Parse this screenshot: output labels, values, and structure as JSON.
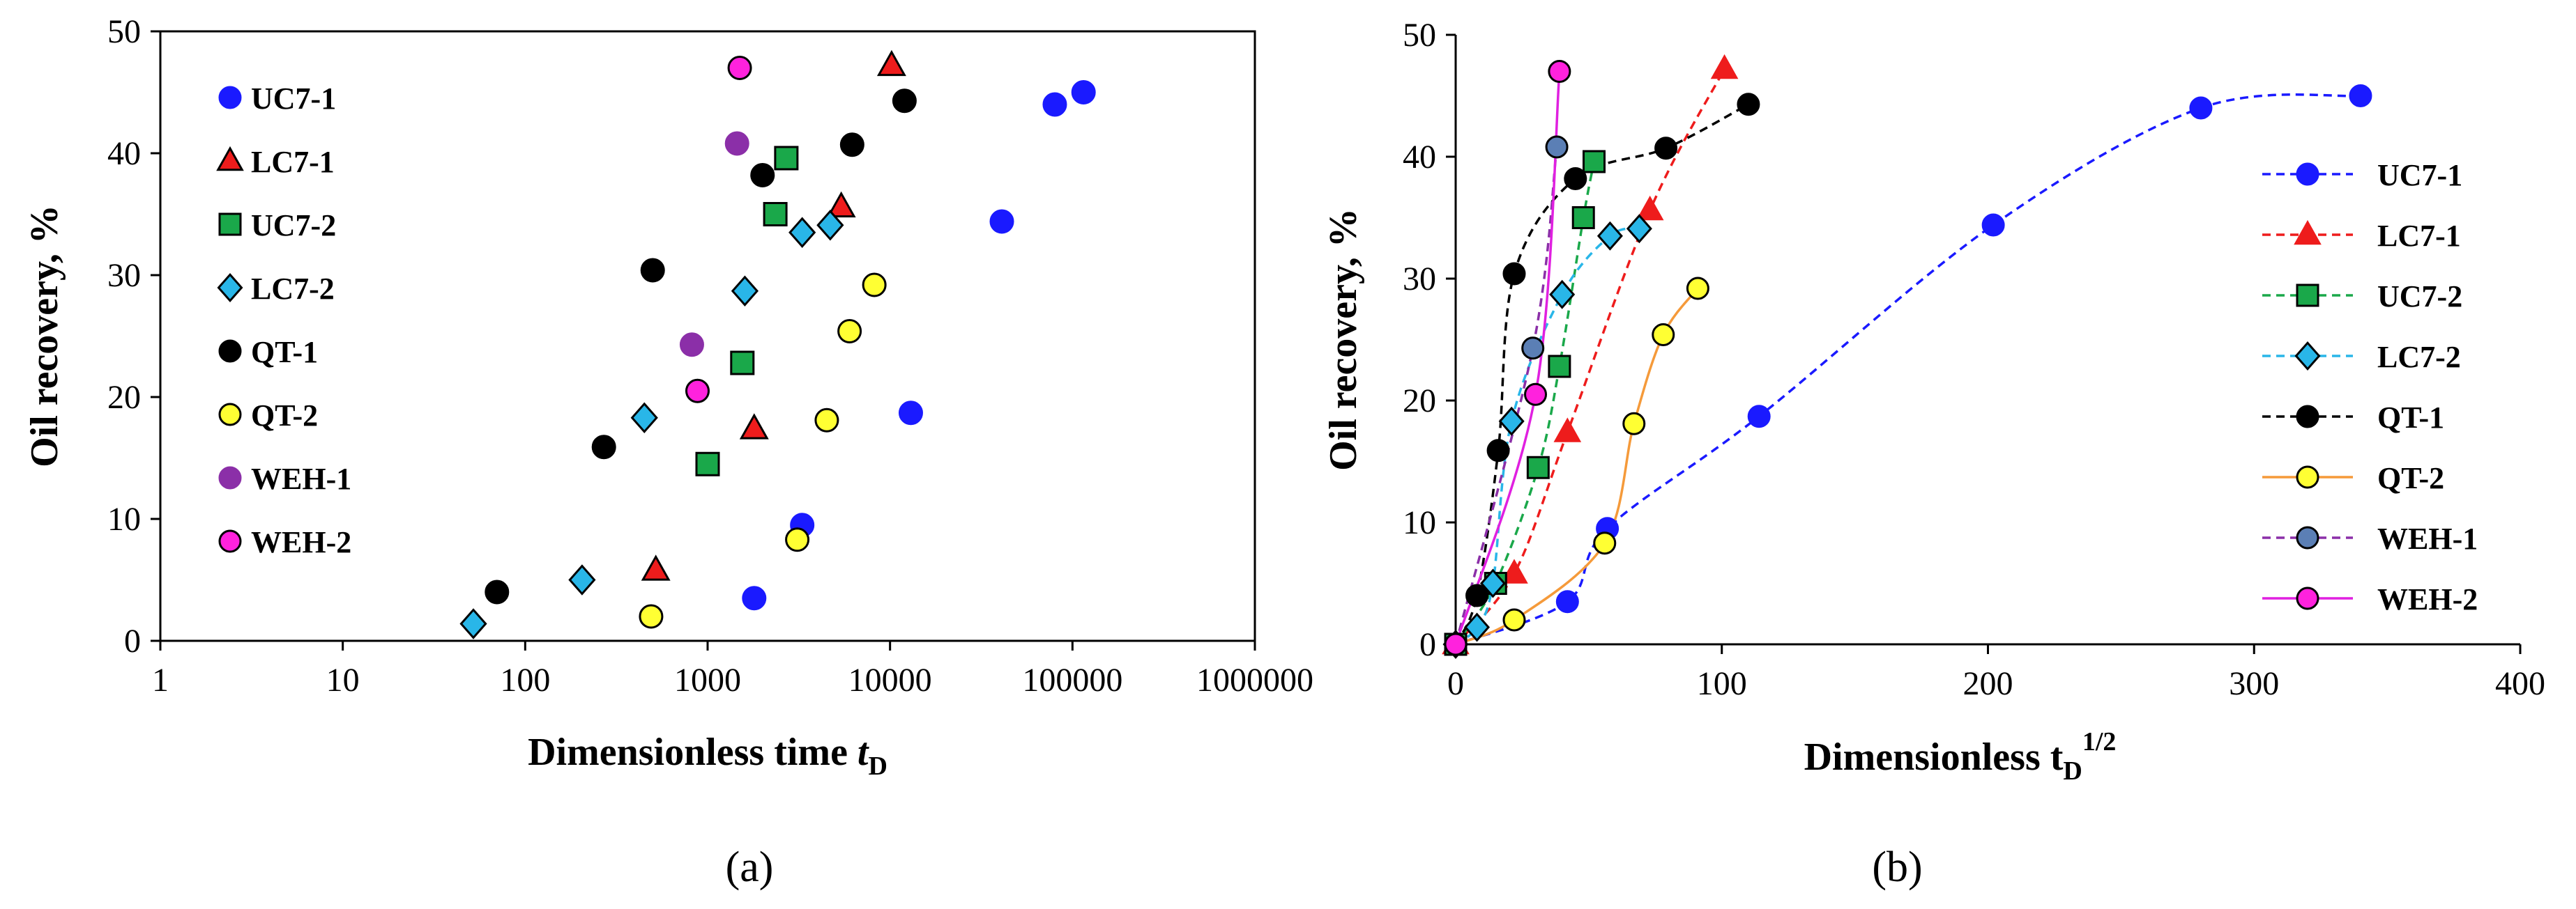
{
  "chart_data": [
    {
      "type": "scatter",
      "panel_label": "(a)",
      "xlabel": "Dimensionless time",
      "xlabel_symbol": "t",
      "xlabel_subscript": "D",
      "ylabel": "Oil recovery, %",
      "xscale": "log",
      "xlim": [
        1,
        1000000
      ],
      "ylim": [
        0,
        50
      ],
      "xticks": [
        "1",
        "10",
        "100",
        "1000",
        "10000",
        "100000",
        "1000000"
      ],
      "yticks": [
        "0",
        "10",
        "20",
        "30",
        "40",
        "50"
      ],
      "legend_position": "left-inside",
      "series": [
        {
          "name": "UC7-1",
          "marker": "circle",
          "fill": "#1a1aff",
          "stroke": "#1a1aff",
          "points": [
            [
              1800,
              3.5
            ],
            [
              3300,
              9.5
            ],
            [
              13000,
              18.7
            ],
            [
              41000,
              34.4
            ],
            [
              80000,
              44
            ],
            [
              115000,
              45
            ]
          ]
        },
        {
          "name": "LC7-1",
          "marker": "triangle",
          "fill": "#ee1c1c",
          "stroke": "#000000",
          "points": [
            [
              520,
              5.8
            ],
            [
              1800,
              17.4
            ],
            [
              5400,
              35.6
            ],
            [
              10200,
              47.2
            ]
          ]
        },
        {
          "name": "UC7-2",
          "marker": "square",
          "fill": "#1aa84a",
          "stroke": "#000000",
          "points": [
            [
              1000,
              14.5
            ],
            [
              1550,
              22.8
            ],
            [
              2350,
              35
            ],
            [
              2700,
              39.6
            ]
          ]
        },
        {
          "name": "LC7-2",
          "marker": "diamond",
          "fill": "#29b6e8",
          "stroke": "#000000",
          "points": [
            [
              52,
              1.4
            ],
            [
              205,
              5
            ],
            [
              450,
              18.3
            ],
            [
              1600,
              28.7
            ],
            [
              3300,
              33.5
            ],
            [
              4700,
              34.1
            ]
          ]
        },
        {
          "name": "QT-1",
          "marker": "circle",
          "fill": "#000000",
          "stroke": "#000000",
          "points": [
            [
              70,
              4
            ],
            [
              270,
              15.9
            ],
            [
              500,
              30.4
            ],
            [
              2000,
              38.2
            ],
            [
              6200,
              40.7
            ],
            [
              12000,
              44.3
            ]
          ]
        },
        {
          "name": "QT-2",
          "marker": "circle",
          "fill": "#ffff33",
          "stroke": "#000000",
          "points": [
            [
              490,
              2
            ],
            [
              3100,
              8.3
            ],
            [
              4500,
              18.1
            ],
            [
              6000,
              25.4
            ],
            [
              8200,
              29.2
            ]
          ]
        },
        {
          "name": "WEH-1",
          "marker": "circle",
          "fill": "#8b2fa8",
          "stroke": "#8b2fa8",
          "points": [
            [
              820,
              24.3
            ],
            [
              1450,
              40.8
            ]
          ]
        },
        {
          "name": "WEH-2",
          "marker": "circle",
          "fill": "#ff22dd",
          "stroke": "#000000",
          "points": [
            [
              880,
              20.5
            ],
            [
              1500,
              47
            ]
          ]
        }
      ]
    },
    {
      "type": "line",
      "panel_label": "(b)",
      "xlabel": "Dimensionless t",
      "xlabel_subscript": "D",
      "xlabel_superscript": "1/2",
      "ylabel": "Oil recovery, %",
      "xlim": [
        0,
        400
      ],
      "ylim": [
        0,
        50
      ],
      "xticks": [
        "0",
        "100",
        "200",
        "300",
        "400"
      ],
      "yticks": [
        "0",
        "10",
        "20",
        "30",
        "40",
        "50"
      ],
      "legend_position": "right-inside",
      "series": [
        {
          "name": "UC7-1",
          "marker": "circle",
          "fill": "#1a1aff",
          "stroke": "#1a1aff",
          "line": "#1a1aff",
          "dash": true,
          "points": [
            [
              0,
              0
            ],
            [
              42,
              3.5
            ],
            [
              57,
              9.5
            ],
            [
              114,
              18.7
            ],
            [
              202,
              34.4
            ],
            [
              280,
              44
            ],
            [
              340,
              45
            ]
          ]
        },
        {
          "name": "LC7-1",
          "marker": "triangle",
          "fill": "#ee1c1c",
          "stroke": "#ee1c1c",
          "line": "#ee1c1c",
          "dash": true,
          "points": [
            [
              0,
              0
            ],
            [
              22,
              5.8
            ],
            [
              42,
              17.4
            ],
            [
              73,
              35.6
            ],
            [
              101,
              47.2
            ]
          ]
        },
        {
          "name": "UC7-2",
          "marker": "square",
          "fill": "#1aa84a",
          "stroke": "#000000",
          "line": "#1aa84a",
          "dash": true,
          "points": [
            [
              0,
              0
            ],
            [
              15,
              5
            ],
            [
              31,
              14.5
            ],
            [
              39,
              22.8
            ],
            [
              48,
              35
            ],
            [
              52,
              39.6
            ]
          ]
        },
        {
          "name": "LC7-2",
          "marker": "diamond",
          "fill": "#29b6e8",
          "stroke": "#000000",
          "line": "#29b6e8",
          "dash": true,
          "points": [
            [
              0,
              0
            ],
            [
              8,
              1.4
            ],
            [
              14,
              5
            ],
            [
              21,
              18.3
            ],
            [
              40,
              28.7
            ],
            [
              58,
              33.5
            ],
            [
              69,
              34.1
            ]
          ]
        },
        {
          "name": "QT-1",
          "marker": "circle",
          "fill": "#000000",
          "stroke": "#000000",
          "line": "#000000",
          "dash": true,
          "points": [
            [
              0,
              0
            ],
            [
              8,
              4
            ],
            [
              16,
              15.9
            ],
            [
              22,
              30.4
            ],
            [
              45,
              38.2
            ],
            [
              79,
              40.7
            ],
            [
              110,
              44.3
            ]
          ]
        },
        {
          "name": "QT-2",
          "marker": "circle",
          "fill": "#ffff33",
          "stroke": "#000000",
          "line": "#f59a3a",
          "dash": false,
          "points": [
            [
              0,
              0
            ],
            [
              22,
              2
            ],
            [
              56,
              8.3
            ],
            [
              67,
              18.1
            ],
            [
              78,
              25.4
            ],
            [
              91,
              29.2
            ]
          ]
        },
        {
          "name": "WEH-1",
          "marker": "circle",
          "fill": "#5b7fb5",
          "stroke": "#000000",
          "line": "#8b2fa8",
          "dash": true,
          "points": [
            [
              0,
              0
            ],
            [
              29,
              24.3
            ],
            [
              38,
              40.8
            ]
          ]
        },
        {
          "name": "WEH-2",
          "marker": "circle",
          "fill": "#ff22dd",
          "stroke": "#000000",
          "line": "#e020e0",
          "dash": false,
          "points": [
            [
              0,
              0
            ],
            [
              30,
              20.5
            ],
            [
              39,
              47
            ]
          ]
        }
      ]
    }
  ]
}
